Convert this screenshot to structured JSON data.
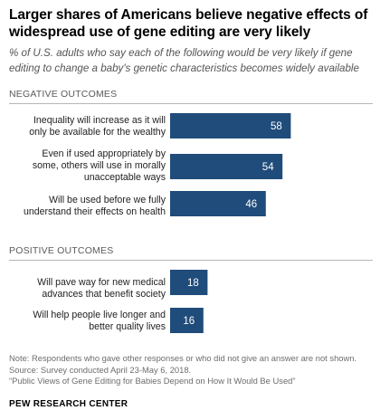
{
  "title": "Larger shares of Americans believe negative effects of widespread use of gene editing are very likely",
  "subtitle": "% of U.S. adults who say each of the following would be very likely if gene editing to change a baby's genetic characteristics becomes widely available",
  "chart_data": {
    "type": "bar",
    "orientation": "horizontal",
    "title": "Larger shares of Americans believe negative effects of widespread use of gene editing are very likely",
    "bar_color": "#1f4c7a",
    "xlim": [
      0,
      100
    ],
    "groups": [
      {
        "name": "NEGATIVE OUTCOMES",
        "categories": [
          "Inequality will increase as it will only be available for the wealthy",
          "Even if used appropriately by some, others will use in morally unacceptable ways",
          "Will be used before we fully understand their effects on health"
        ],
        "values": [
          58,
          54,
          46
        ]
      },
      {
        "name": "POSITIVE OUTCOMES",
        "categories": [
          "Will pave way for new medical advances that benefit society",
          "Will help people live longer and better quality lives"
        ],
        "values": [
          18,
          16
        ]
      }
    ]
  },
  "labels": {
    "neg_1_line1": "Inequality will increase as it will",
    "neg_1_line2": "only be available for the wealthy",
    "neg_2_line1": "Even if used appropriately by",
    "neg_2_line2": "some, others will use in morally",
    "neg_2_line3": "unacceptable ways",
    "neg_3_line1": "Will be used before we fully",
    "neg_3_line2": "understand their effects on health",
    "pos_1_line1": "Will pave way for new medical",
    "pos_1_line2": "advances that benefit society",
    "pos_2_line1": "Will help people live longer and",
    "pos_2_line2": "better quality lives"
  },
  "notes": {
    "note": "Note: Respondents who gave other responses or who did not give an answer are not shown.",
    "source": "Source: Survey conducted April 23-May 6, 2018.",
    "report": "“Public Views of Gene Editing for Babies Depend on How It Would Be Used”"
  },
  "org": "PEW RESEARCH CENTER"
}
